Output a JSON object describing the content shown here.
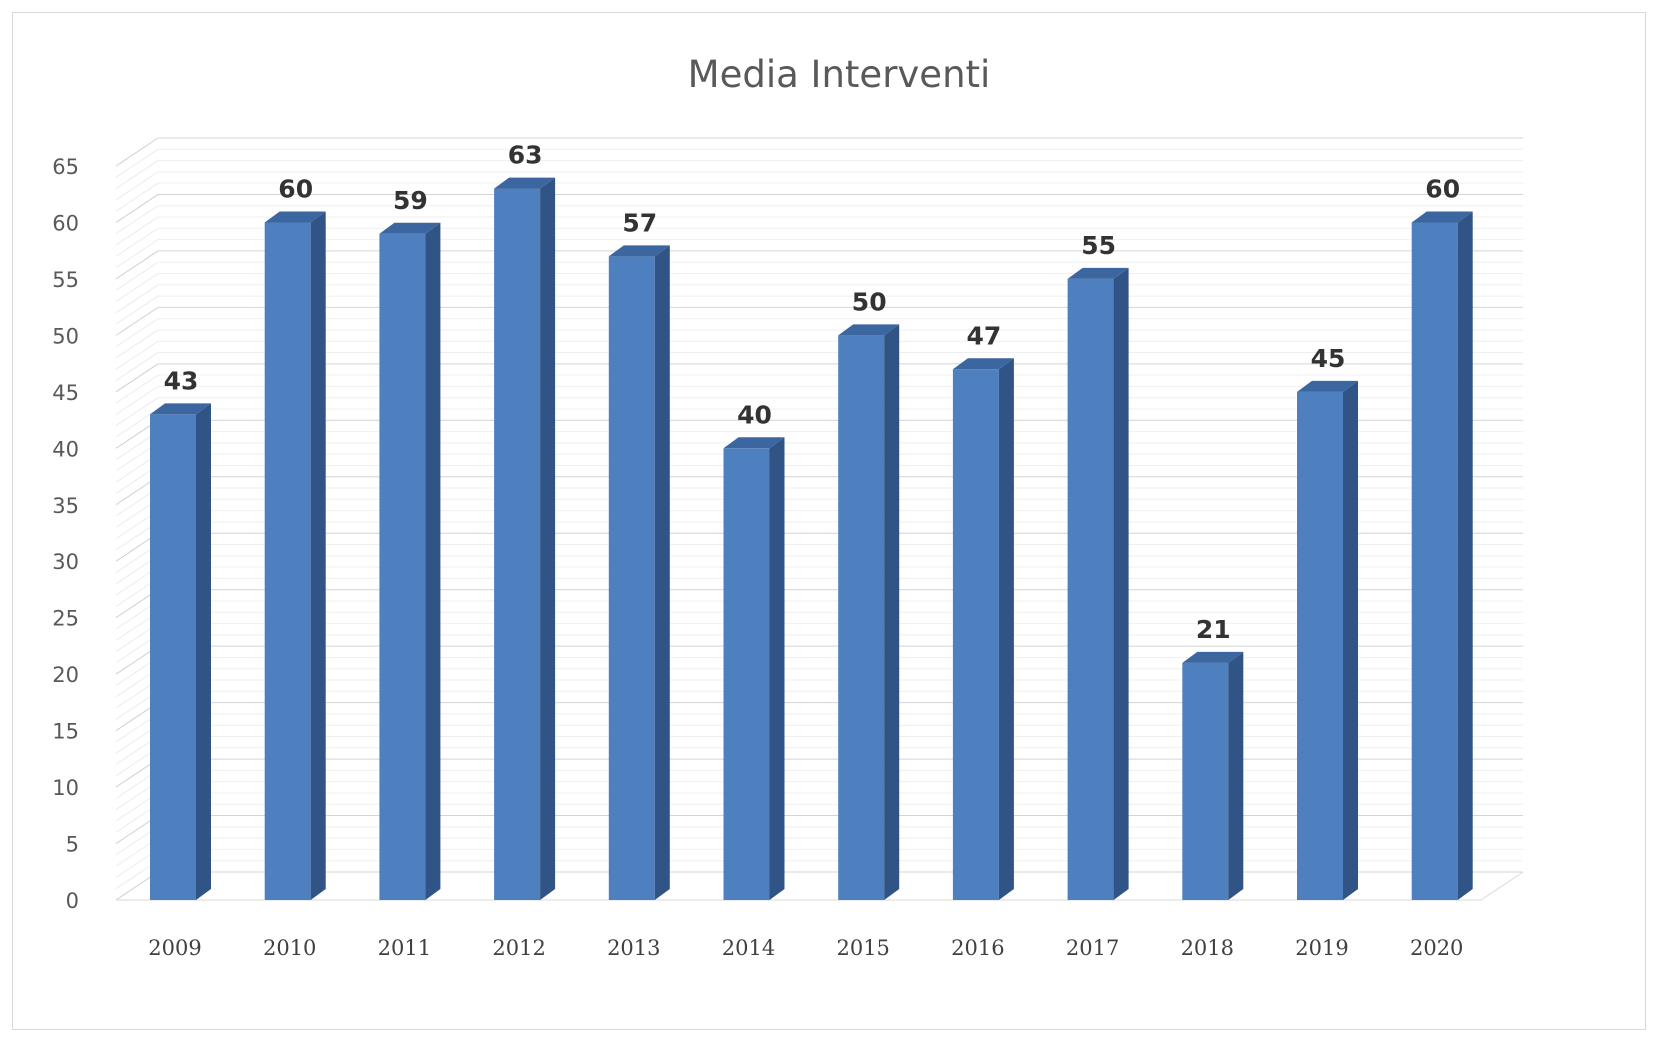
{
  "chart_data": {
    "type": "bar",
    "title": "Media Interventi",
    "xlabel": "",
    "ylabel": "",
    "categories": [
      "2009",
      "2010",
      "2011",
      "2012",
      "2013",
      "2014",
      "2015",
      "2016",
      "2017",
      "2018",
      "2019",
      "2020"
    ],
    "values": [
      43,
      60,
      59,
      63,
      57,
      40,
      50,
      47,
      55,
      21,
      45,
      60
    ],
    "ylim": [
      0,
      65
    ],
    "yticks": [
      0,
      5,
      10,
      15,
      20,
      25,
      30,
      35,
      40,
      45,
      50,
      55,
      60,
      65
    ],
    "style": "3d-column",
    "grid": true,
    "data_labels": true,
    "legend": "none",
    "colors": {
      "bar_front": "#4e80bf",
      "bar_side": "#2f5485",
      "bar_top": "#3b669f",
      "gridline": "#d9d9d9",
      "text": "#595959"
    }
  }
}
